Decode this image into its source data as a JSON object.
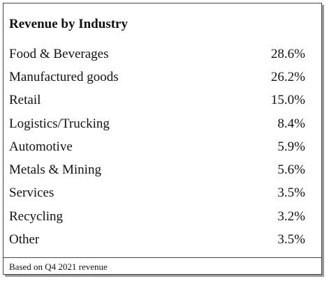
{
  "table": {
    "title": "Revenue by Industry",
    "rows": [
      {
        "label": "Food & Beverages",
        "value": "28.6%"
      },
      {
        "label": "Manufactured goods",
        "value": "26.2%"
      },
      {
        "label": "Retail",
        "value": "15.0%"
      },
      {
        "label": "Logistics/Trucking",
        "value": "8.4%"
      },
      {
        "label": "Automotive",
        "value": "5.9%"
      },
      {
        "label": "Metals & Mining",
        "value": "5.6%"
      },
      {
        "label": "Services",
        "value": "3.5%"
      },
      {
        "label": "Recycling",
        "value": "3.2%"
      },
      {
        "label": "Other",
        "value": "3.5%"
      }
    ],
    "footnote": "Based on Q4 2021 revenue"
  }
}
